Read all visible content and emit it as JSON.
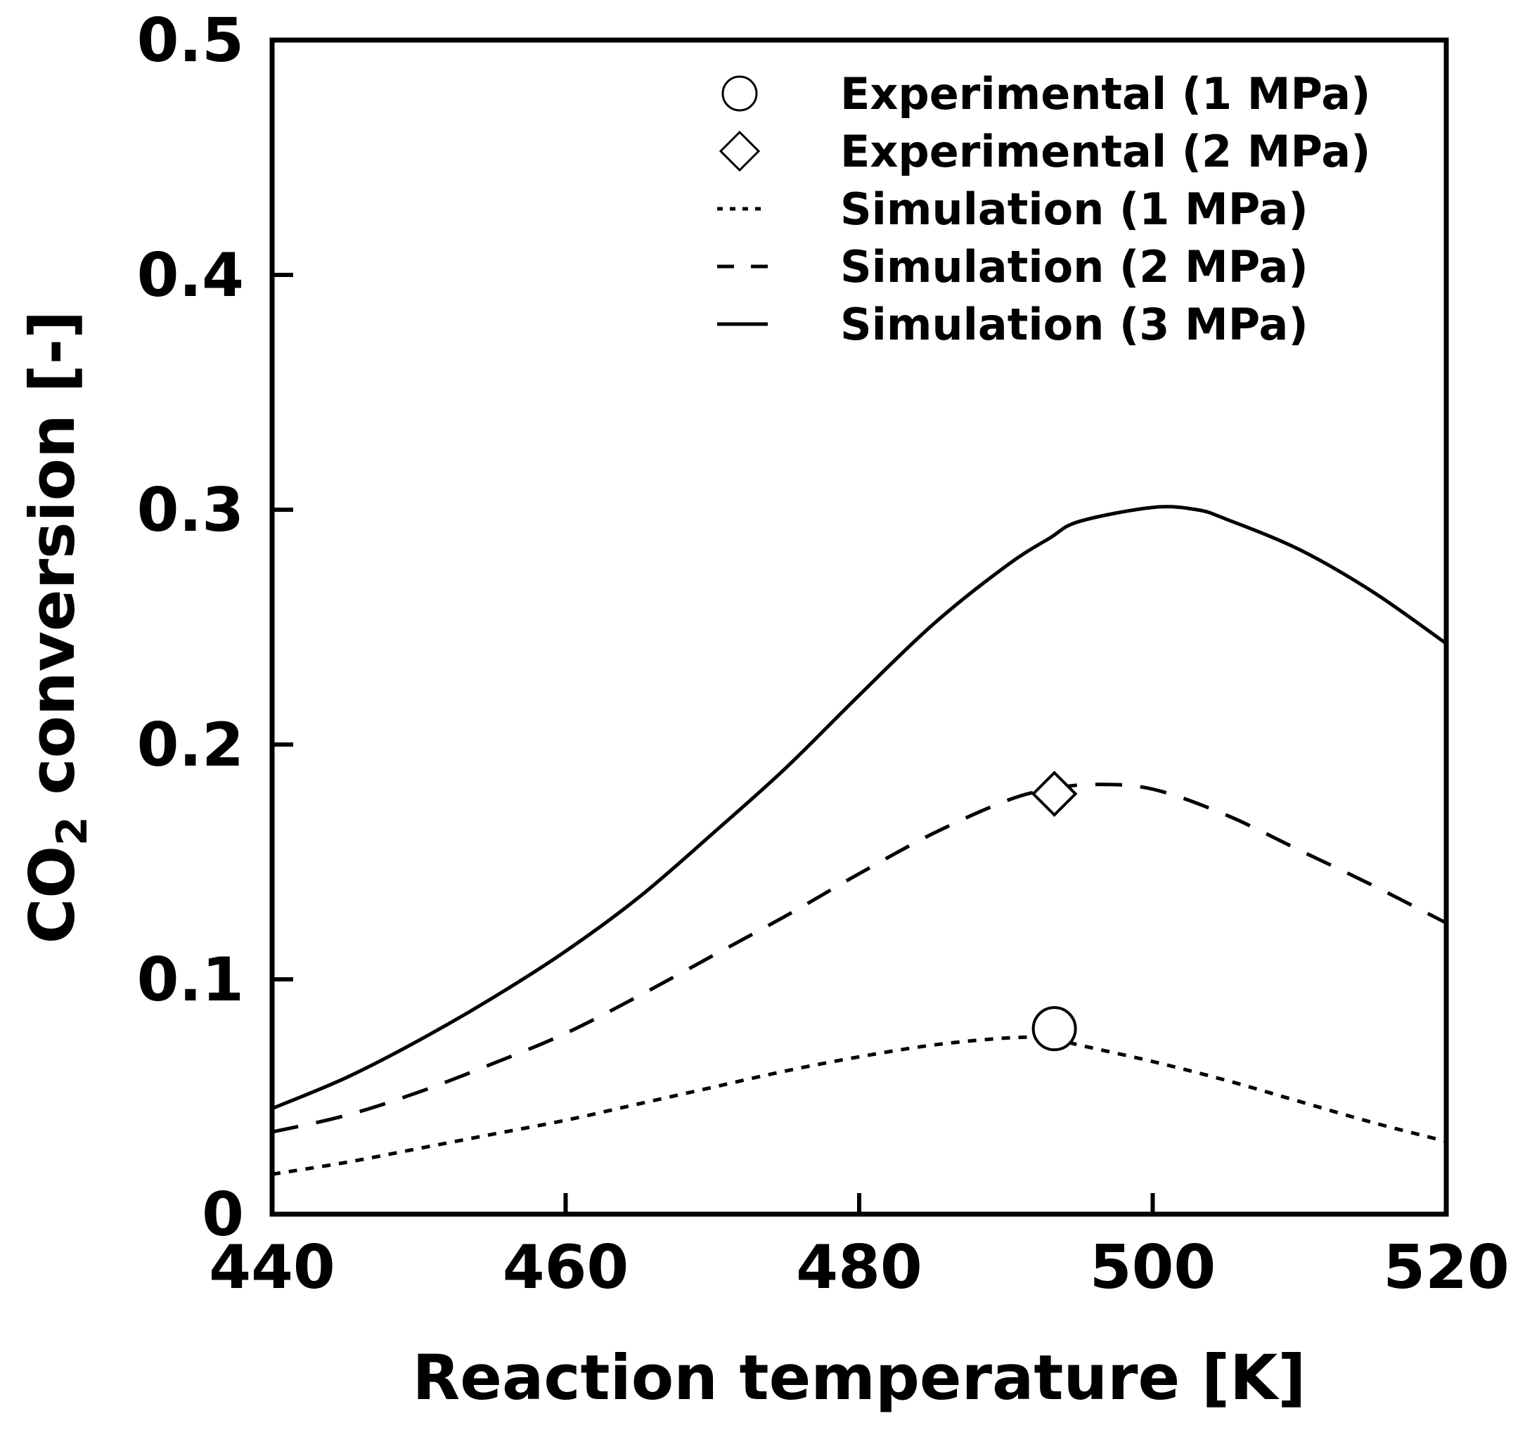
{
  "chart_data": {
    "type": "line",
    "title": "",
    "xlabel": "Reaction temperature [K]",
    "ylabel_prefix": "CO",
    "ylabel_sub": "2",
    "ylabel_suffix": " conversion [-]",
    "xlim": [
      440,
      520
    ],
    "ylim": [
      0,
      0.5
    ],
    "xticks": [
      440,
      460,
      480,
      500,
      520
    ],
    "xtick_labels": [
      "440",
      "460",
      "480",
      "500",
      "520"
    ],
    "yticks": [
      0,
      0.1,
      0.2,
      0.3,
      0.4,
      0.5
    ],
    "ytick_labels": [
      "0",
      "0.1",
      "0.2",
      "0.3",
      "0.4",
      "0.5"
    ],
    "legend_position": "top-right",
    "series": [
      {
        "name": "Simulation (1 MPa)",
        "style": "dotted",
        "x": [
          440,
          445,
          450,
          455,
          460,
          465,
          470,
          475,
          480,
          485,
          490,
          493,
          495,
          500,
          505,
          510,
          515,
          520
        ],
        "y": [
          0.017,
          0.022,
          0.028,
          0.034,
          0.04,
          0.047,
          0.054,
          0.061,
          0.067,
          0.072,
          0.075,
          0.075,
          0.072,
          0.065,
          0.057,
          0.048,
          0.039,
          0.031
        ]
      },
      {
        "name": "Simulation (2 MPa)",
        "style": "dashed",
        "x": [
          440,
          445,
          450,
          455,
          460,
          465,
          470,
          475,
          480,
          485,
          490,
          493,
          496,
          500,
          505,
          510,
          515,
          520
        ],
        "y": [
          0.035,
          0.042,
          0.052,
          0.064,
          0.077,
          0.093,
          0.11,
          0.127,
          0.145,
          0.162,
          0.176,
          0.181,
          0.183,
          0.181,
          0.17,
          0.155,
          0.14,
          0.124
        ]
      },
      {
        "name": "Simulation (3 MPa)",
        "style": "solid",
        "x": [
          440,
          445,
          450,
          455,
          460,
          465,
          470,
          475,
          480,
          485,
          490,
          493,
          495,
          500,
          503,
          505,
          510,
          515,
          520
        ],
        "y": [
          0.045,
          0.058,
          0.074,
          0.092,
          0.112,
          0.135,
          0.162,
          0.19,
          0.221,
          0.251,
          0.276,
          0.288,
          0.295,
          0.301,
          0.3,
          0.296,
          0.283,
          0.265,
          0.243
        ]
      },
      {
        "name": "Experimental (1 MPa)",
        "style": "circle-marker",
        "x": [
          493.3
        ],
        "y": [
          0.079
        ]
      },
      {
        "name": "Experimental (2 MPa)",
        "style": "diamond-marker",
        "x": [
          493.3
        ],
        "y": [
          0.179
        ]
      }
    ],
    "legend": [
      {
        "label": "Experimental (1 MPa)",
        "symbol": "circle"
      },
      {
        "label": "Experimental (2 MPa)",
        "symbol": "diamond"
      },
      {
        "label": "Simulation (1 MPa)",
        "symbol": "dotted"
      },
      {
        "label": "Simulation (2 MPa)",
        "symbol": "dashed"
      },
      {
        "label": "Simulation (3 MPa)",
        "symbol": "solid"
      }
    ]
  }
}
